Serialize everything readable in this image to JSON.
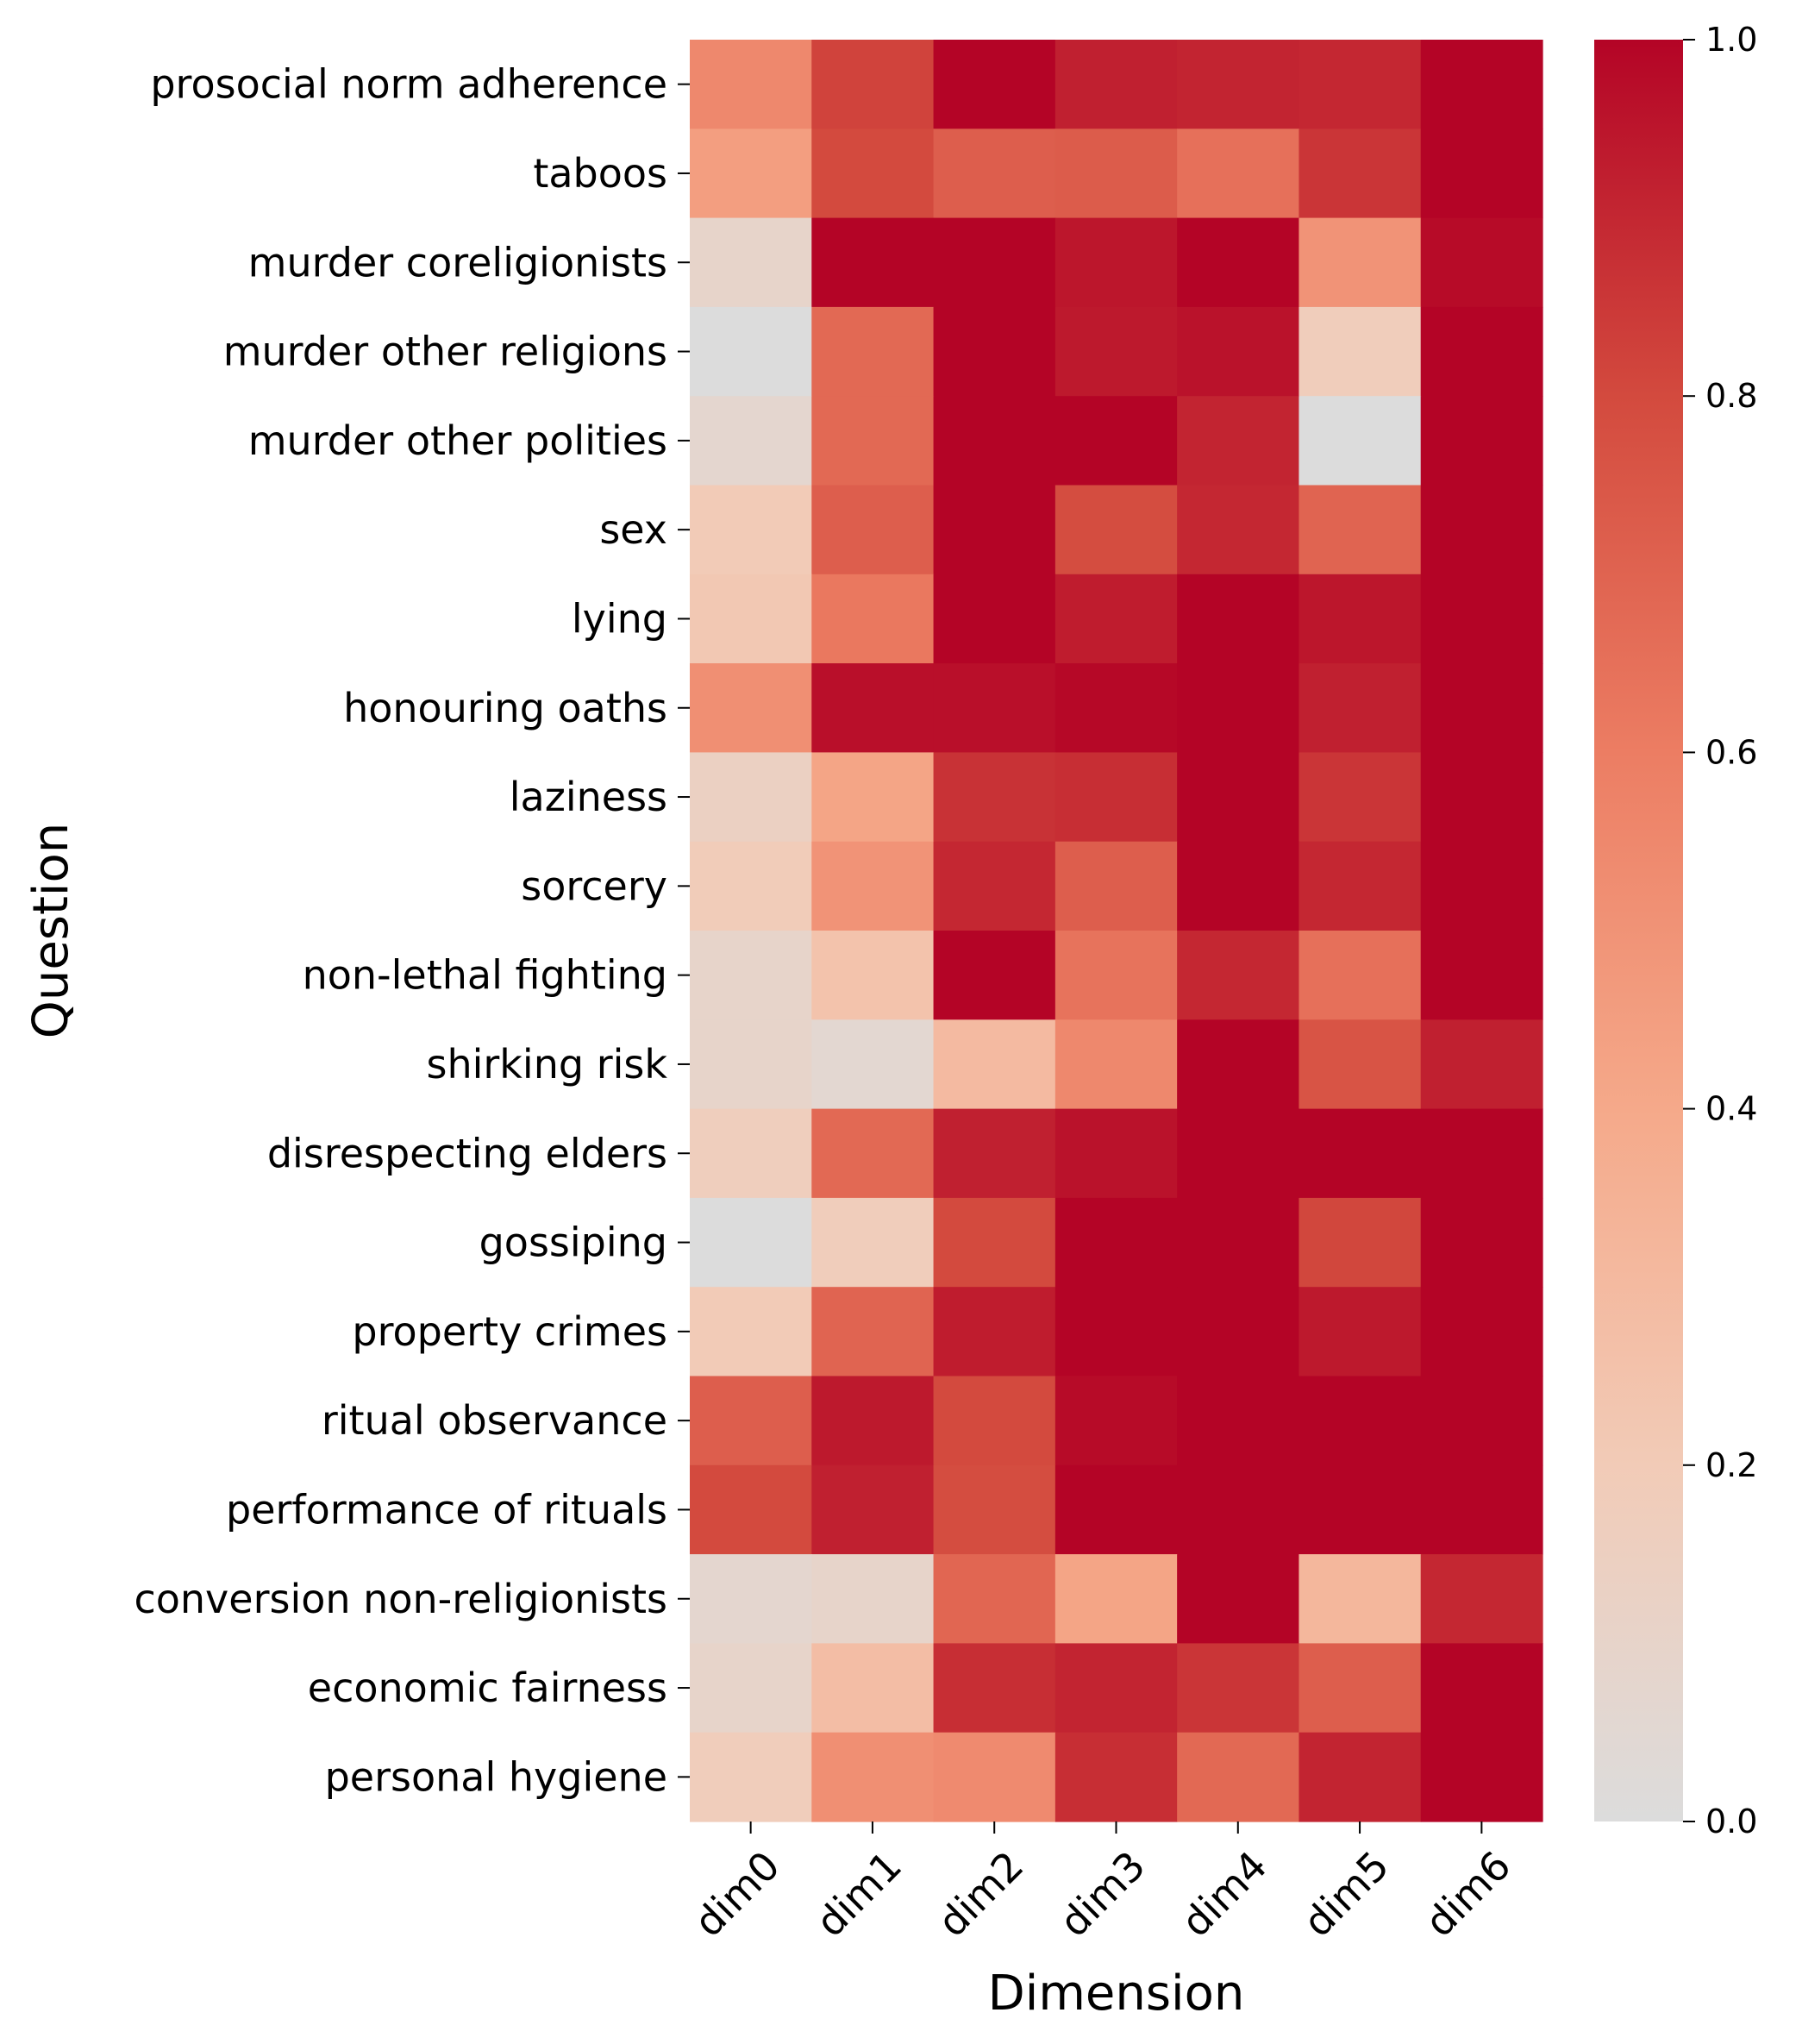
{
  "chart_data": {
    "type": "heatmap",
    "title": "",
    "xlabel": "Dimension",
    "ylabel": "Question",
    "columns": [
      "dim0",
      "dim1",
      "dim2",
      "dim3",
      "dim4",
      "dim5",
      "dim6"
    ],
    "rows": [
      "prosocial norm adherence",
      "taboos",
      "murder coreligionists",
      "murder other religions",
      "murder other polities",
      "sex",
      "lying",
      "honouring oaths",
      "laziness",
      "sorcery",
      "non-lethal fighting",
      "shirking risk",
      "disrespecting elders",
      "gossiping",
      "property crimes",
      "ritual observance",
      "performance of rituals",
      "conversion non-religionists",
      "economic fairness",
      "personal hygiene"
    ],
    "values": [
      [
        0.55,
        0.82,
        1.0,
        0.92,
        0.91,
        0.9,
        1.0
      ],
      [
        0.45,
        0.8,
        0.72,
        0.73,
        0.65,
        0.86,
        1.0
      ],
      [
        0.1,
        1.0,
        1.0,
        0.95,
        1.0,
        0.5,
        0.98
      ],
      [
        0.0,
        0.68,
        1.0,
        0.94,
        0.96,
        0.18,
        1.0
      ],
      [
        0.07,
        0.68,
        1.0,
        1.0,
        0.91,
        0.0,
        1.0
      ],
      [
        0.2,
        0.72,
        1.0,
        0.79,
        0.9,
        0.7,
        1.0
      ],
      [
        0.22,
        0.62,
        1.0,
        0.93,
        1.0,
        0.95,
        1.0
      ],
      [
        0.52,
        0.97,
        0.97,
        0.99,
        1.0,
        0.92,
        1.0
      ],
      [
        0.14,
        0.42,
        0.87,
        0.88,
        1.0,
        0.86,
        1.0
      ],
      [
        0.19,
        0.5,
        0.9,
        0.72,
        1.0,
        0.9,
        1.0
      ],
      [
        0.1,
        0.25,
        1.0,
        0.64,
        0.9,
        0.65,
        1.0
      ],
      [
        0.1,
        0.06,
        0.3,
        0.55,
        1.0,
        0.76,
        0.92
      ],
      [
        0.17,
        0.68,
        0.92,
        0.96,
        1.0,
        1.0,
        1.0
      ],
      [
        0.0,
        0.18,
        0.8,
        1.0,
        1.0,
        0.81,
        1.0
      ],
      [
        0.2,
        0.7,
        0.93,
        1.0,
        1.0,
        0.94,
        1.0
      ],
      [
        0.72,
        0.94,
        0.8,
        0.98,
        1.0,
        1.0,
        1.0
      ],
      [
        0.8,
        0.92,
        0.79,
        1.0,
        1.0,
        1.0,
        1.0
      ],
      [
        0.07,
        0.1,
        0.69,
        0.42,
        1.0,
        0.32,
        0.9
      ],
      [
        0.1,
        0.28,
        0.88,
        0.91,
        0.86,
        0.72,
        1.0
      ],
      [
        0.18,
        0.52,
        0.54,
        0.88,
        0.68,
        0.91,
        1.0
      ]
    ],
    "colorbar": {
      "min": 0.0,
      "max": 1.0,
      "ticks": [
        "0.0",
        "0.2",
        "0.4",
        "0.6",
        "0.8",
        "1.0"
      ]
    },
    "colormap": {
      "stops": [
        {
          "at": 0.0,
          "color": "#dcdcdc"
        },
        {
          "at": 0.2,
          "color": "#f2cbb7"
        },
        {
          "at": 0.4,
          "color": "#f5a98a"
        },
        {
          "at": 0.6,
          "color": "#ec7d63"
        },
        {
          "at": 0.8,
          "color": "#d34a3e"
        },
        {
          "at": 1.0,
          "color": "#b40426"
        }
      ]
    }
  }
}
